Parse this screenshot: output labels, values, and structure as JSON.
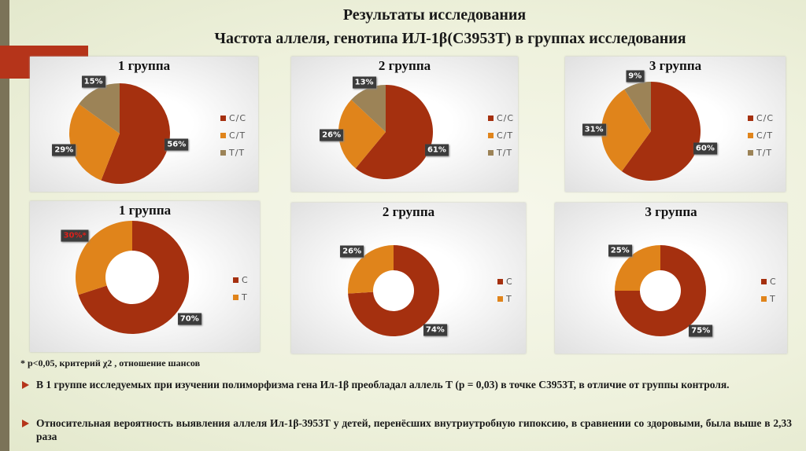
{
  "title": "Результаты исследования",
  "subtitle": "Частота аллеля, генотипа ИЛ-1β(С3953Т) в группах исследования",
  "colors": {
    "C/C": "#a5300f",
    "C/T": "#e0841b",
    "T/T": "#9c8357",
    "C": "#a5300f",
    "T": "#e0841b"
  },
  "chart_data": [
    {
      "type": "pie",
      "title": "1 группа",
      "categories": [
        "C/C",
        "C/T",
        "T/T"
      ],
      "values": [
        56,
        29,
        15
      ],
      "labels": [
        "56%",
        "29%",
        "15%"
      ]
    },
    {
      "type": "pie",
      "title": "2 группа",
      "categories": [
        "C/C",
        "C/T",
        "T/T"
      ],
      "values": [
        61,
        26,
        13
      ],
      "labels": [
        "61%",
        "26%",
        "13%"
      ]
    },
    {
      "type": "pie",
      "title": "3 группа",
      "categories": [
        "C/C",
        "C/T",
        "T/T"
      ],
      "values": [
        60,
        31,
        9
      ],
      "labels": [
        "60%",
        "31%",
        "9%"
      ]
    },
    {
      "type": "donut",
      "title": "1 группа",
      "categories": [
        "C",
        "T"
      ],
      "values": [
        70,
        30
      ],
      "labels": [
        "70%",
        "30%*"
      ],
      "highlight": [
        false,
        true
      ]
    },
    {
      "type": "donut",
      "title": "2 группа",
      "categories": [
        "C",
        "T"
      ],
      "values": [
        74,
        26
      ],
      "labels": [
        "74%",
        "26%"
      ],
      "highlight": [
        false,
        false
      ]
    },
    {
      "type": "donut",
      "title": "3 группа",
      "categories": [
        "C",
        "T"
      ],
      "values": [
        75,
        25
      ],
      "labels": [
        "75%",
        "25%"
      ],
      "highlight": [
        false,
        false
      ]
    }
  ],
  "footnote": "* p<0,05, критерий χ2 , отношение шансов",
  "bullets": [
    "В 1 группе исследуемых при изучении полиморфизма гена Ил-1β преобладал аллель Т (р = 0,03) в  точке С3953Т, в отличие от группы контроля.",
    "Относительная вероятность выявления аллеля Ил-1β-3953Т у  детей, перенёсших внутриутробную гипоксию, в сравнении со здоровыми, была выше в 2,33 раза"
  ]
}
